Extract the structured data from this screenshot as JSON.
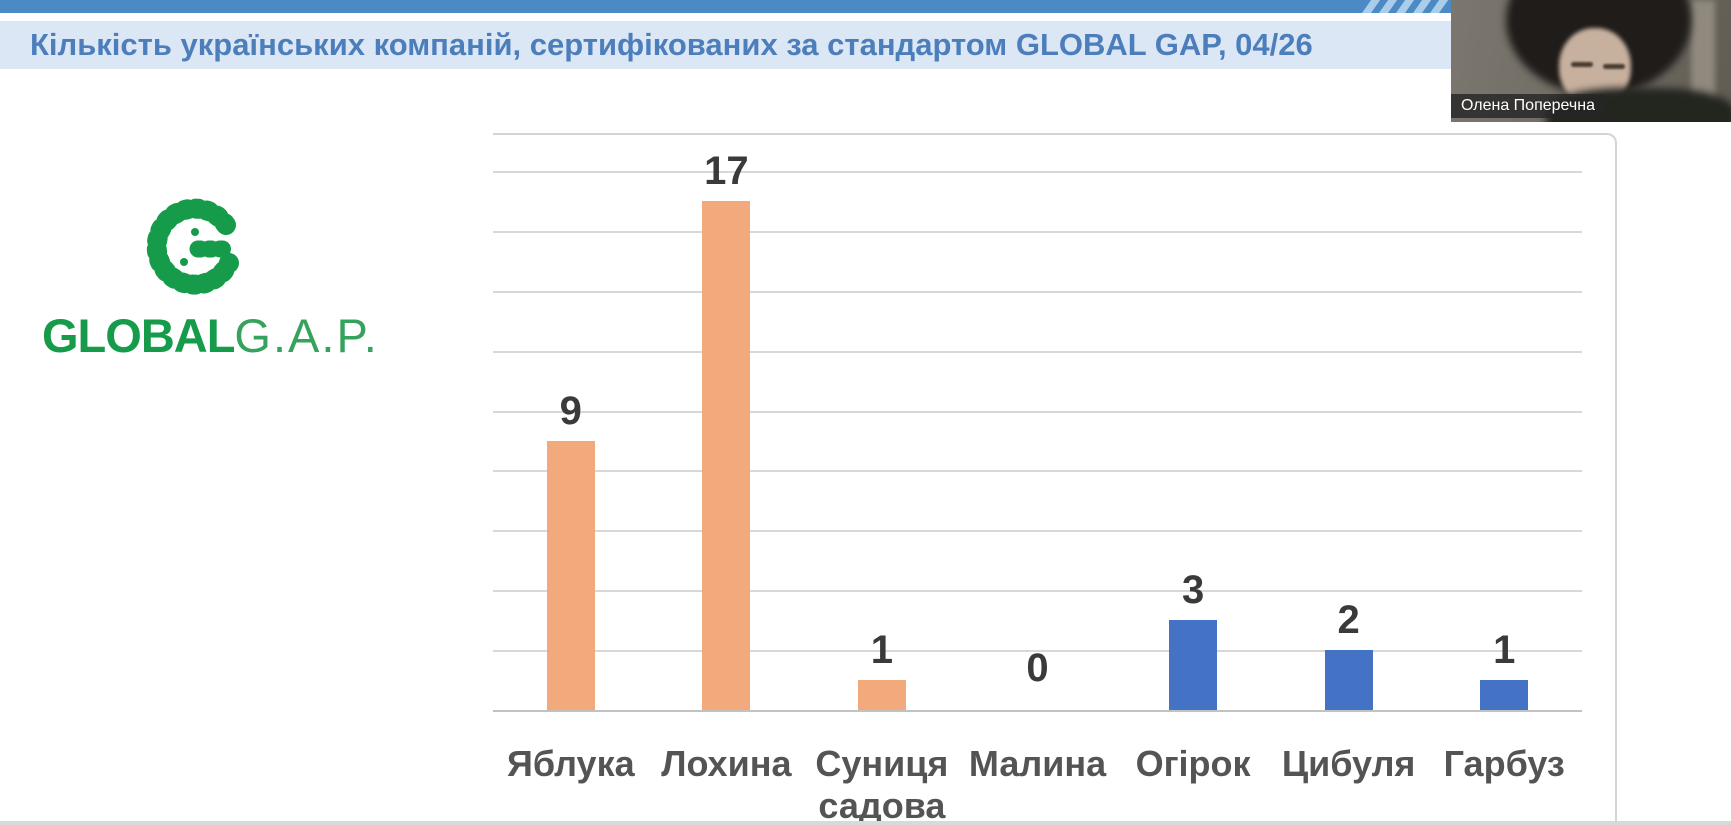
{
  "slide": {
    "title": "Кількість українських компаній, сертифікованих за стандартом GLOBAL GAP, 04/26",
    "title_color": "#4d7ebc",
    "title_band_color": "#dbe7f4",
    "top_bar_color": "#4b8ac5"
  },
  "logo": {
    "emblem": "globalgap-g-icon",
    "text_bold": "GLOBAL",
    "text_regular": "G.A.P.",
    "brand_green": "#169b4a"
  },
  "webcam": {
    "participant_name": "Олена Поперечна"
  },
  "chart_data": {
    "type": "bar",
    "title": "",
    "xlabel": "",
    "ylabel": "",
    "categories": [
      "Яблука",
      "Лохина",
      "Суниця садова",
      "Малина",
      "Огірок",
      "Цибуля",
      "Гарбуз"
    ],
    "values": [
      9,
      17,
      1,
      0,
      3,
      2,
      1
    ],
    "bar_colors": [
      "#f2aa7c",
      "#f2aa7c",
      "#f2aa7c",
      "#f2aa7c",
      "#4472c4",
      "#4472c4",
      "#4472c4"
    ],
    "data_labels": true,
    "ylim": [
      0,
      19
    ],
    "grid_step": 2,
    "grid": true,
    "legend": false,
    "value_label_color": "#3a3a3a",
    "category_label_color": "#545454",
    "gridline_color": "#d8d8d8",
    "axis_color": "#c2c2c2"
  }
}
